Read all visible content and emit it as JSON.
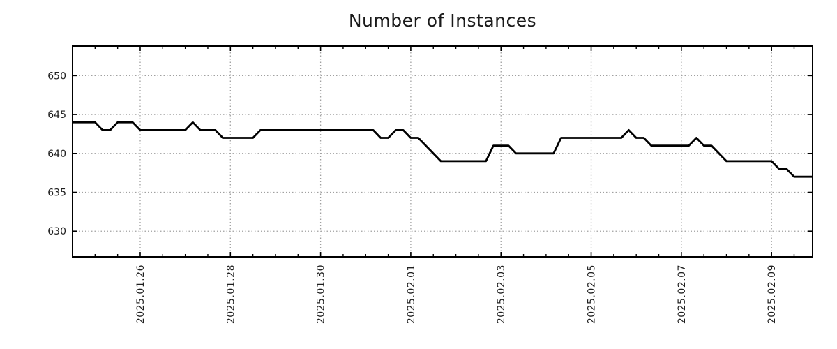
{
  "chart_data": {
    "type": "line",
    "title": "Number of Instances",
    "background_color": "#ffffff",
    "line_color": "#000000",
    "line_width": 2.8,
    "grid_color": "#a0a0a0",
    "frame_color": "#000000",
    "text_color": "#202020",
    "grid": true,
    "legend": false,
    "x_axis": {
      "tick_labels": [
        "2025.01.26",
        "2025.01.28",
        "2025.01.30",
        "2025.02.01",
        "2025.02.03",
        "2025.02.05",
        "2025.02.07",
        "2025.02.09"
      ],
      "tick_day_offsets": [
        0,
        2,
        4,
        6,
        8,
        10,
        12,
        14
      ],
      "day_offsets_relative_to": "2025.01.26",
      "minor_tick_interval_days": 0.5,
      "range_days": [
        -1.5,
        14.91
      ],
      "tick_label_rotation_deg": -90
    },
    "y_axis": {
      "tick_values": [
        630,
        635,
        640,
        645,
        650
      ],
      "range": [
        626.7,
        653.8
      ]
    },
    "series": [
      {
        "name": "instances",
        "color": "#000000",
        "points": [
          [
            -1.5,
            644
          ],
          [
            -1.0,
            644
          ],
          [
            -0.833,
            643
          ],
          [
            -0.667,
            643
          ],
          [
            -0.5,
            644
          ],
          [
            -0.167,
            644
          ],
          [
            0,
            643
          ],
          [
            1.0,
            643
          ],
          [
            1.167,
            644
          ],
          [
            1.333,
            643
          ],
          [
            1.667,
            643
          ],
          [
            1.833,
            642
          ],
          [
            2.5,
            642
          ],
          [
            2.667,
            643
          ],
          [
            5.167,
            643
          ],
          [
            5.333,
            642
          ],
          [
            5.5,
            642
          ],
          [
            5.667,
            643
          ],
          [
            5.833,
            643
          ],
          [
            6.0,
            642
          ],
          [
            6.167,
            642
          ],
          [
            6.667,
            639
          ],
          [
            7.667,
            639
          ],
          [
            7.833,
            641
          ],
          [
            8.167,
            641
          ],
          [
            8.333,
            640
          ],
          [
            9.167,
            640
          ],
          [
            9.333,
            642
          ],
          [
            10.667,
            642
          ],
          [
            10.833,
            643
          ],
          [
            11.0,
            642
          ],
          [
            11.167,
            642
          ],
          [
            11.333,
            641
          ],
          [
            12.167,
            641
          ],
          [
            12.333,
            642
          ],
          [
            12.5,
            641
          ],
          [
            12.667,
            641
          ],
          [
            13.0,
            639
          ],
          [
            14.0,
            639
          ],
          [
            14.167,
            638
          ],
          [
            14.333,
            638
          ],
          [
            14.5,
            637
          ],
          [
            14.91,
            637
          ]
        ]
      }
    ]
  }
}
